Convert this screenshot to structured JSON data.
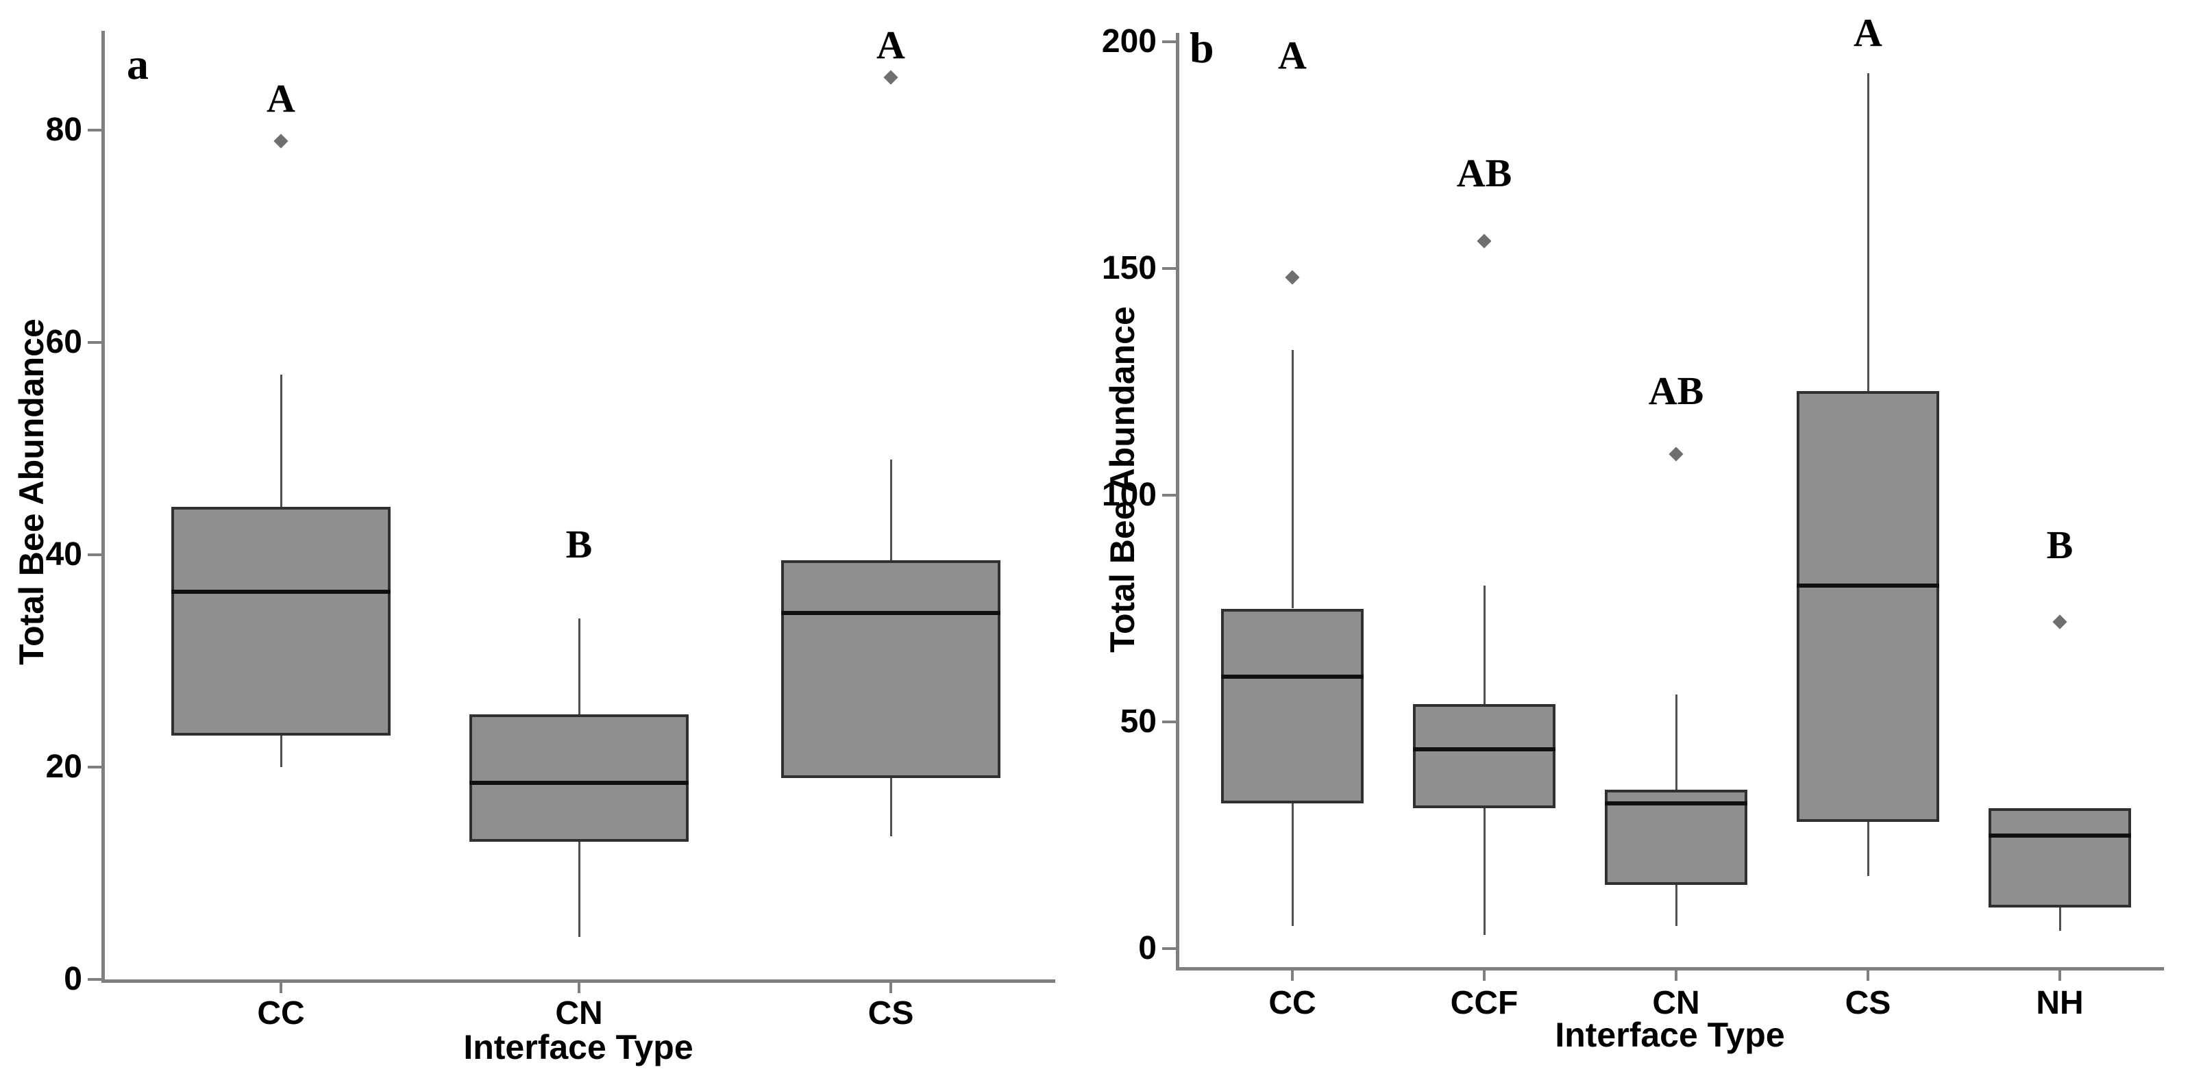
{
  "figure": {
    "background": "#ffffff"
  },
  "colors": {
    "box_fill": "#8f8f8f",
    "box_border": "#303030",
    "median": "#101010",
    "whisker": "#4f4f4f",
    "axis": "#7f7f7f",
    "outlier": "#6f6f6f",
    "text": "#000000"
  },
  "chart_data": [
    {
      "type": "boxplot",
      "panel_label": "a",
      "xlabel": "Interface Type",
      "ylabel": "Total Bee Abundance",
      "ylim": [
        0,
        90
      ],
      "yticks": [
        0,
        20,
        40,
        60,
        80
      ],
      "categories": [
        "CC",
        "CN",
        "CS"
      ],
      "series": [
        {
          "category": "CC",
          "letter": "A",
          "letter_y": 83,
          "whisker_low": 20,
          "q1": 23,
          "median": 36.5,
          "q3": 44.5,
          "whisker_high": 57,
          "outliers": [
            79
          ]
        },
        {
          "category": "CN",
          "letter": "B",
          "letter_y": 41,
          "whisker_low": 4,
          "q1": 13,
          "median": 18.5,
          "q3": 25,
          "whisker_high": 34,
          "outliers": []
        },
        {
          "category": "CS",
          "letter": "A",
          "letter_y": 88,
          "whisker_low": 13.5,
          "q1": 19,
          "median": 34.5,
          "q3": 39.5,
          "whisker_high": 49,
          "outliers": [
            85
          ]
        }
      ]
    },
    {
      "type": "boxplot",
      "panel_label": "b",
      "xlabel": "Interface Type",
      "ylabel": "Total Bee Abundance",
      "ylim": [
        0,
        205
      ],
      "yticks": [
        0,
        50,
        100,
        150,
        200
      ],
      "categories": [
        "CC",
        "CCF",
        "CN",
        "CS",
        "NH"
      ],
      "series": [
        {
          "category": "CC",
          "letter": "A",
          "letter_y": 197,
          "whisker_low": 5,
          "q1": 32,
          "median": 60,
          "q3": 75,
          "whisker_high": 132,
          "outliers": [
            148
          ]
        },
        {
          "category": "CCF",
          "letter": "AB",
          "letter_y": 171,
          "whisker_low": 3,
          "q1": 31,
          "median": 44,
          "q3": 54,
          "whisker_high": 80,
          "outliers": [
            156
          ]
        },
        {
          "category": "CN",
          "letter": "AB",
          "letter_y": 123,
          "whisker_low": 5,
          "q1": 14,
          "median": 32,
          "q3": 35,
          "whisker_high": 56,
          "outliers": [
            109
          ]
        },
        {
          "category": "CS",
          "letter": "A",
          "letter_y": 202,
          "whisker_low": 16,
          "q1": 28,
          "median": 80,
          "q3": 123,
          "whisker_high": 193,
          "outliers": []
        },
        {
          "category": "NH",
          "letter": "B",
          "letter_y": 89,
          "whisker_low": 4,
          "q1": 9,
          "median": 25,
          "q3": 31,
          "whisker_high": 31,
          "outliers": [
            72
          ]
        }
      ]
    }
  ]
}
